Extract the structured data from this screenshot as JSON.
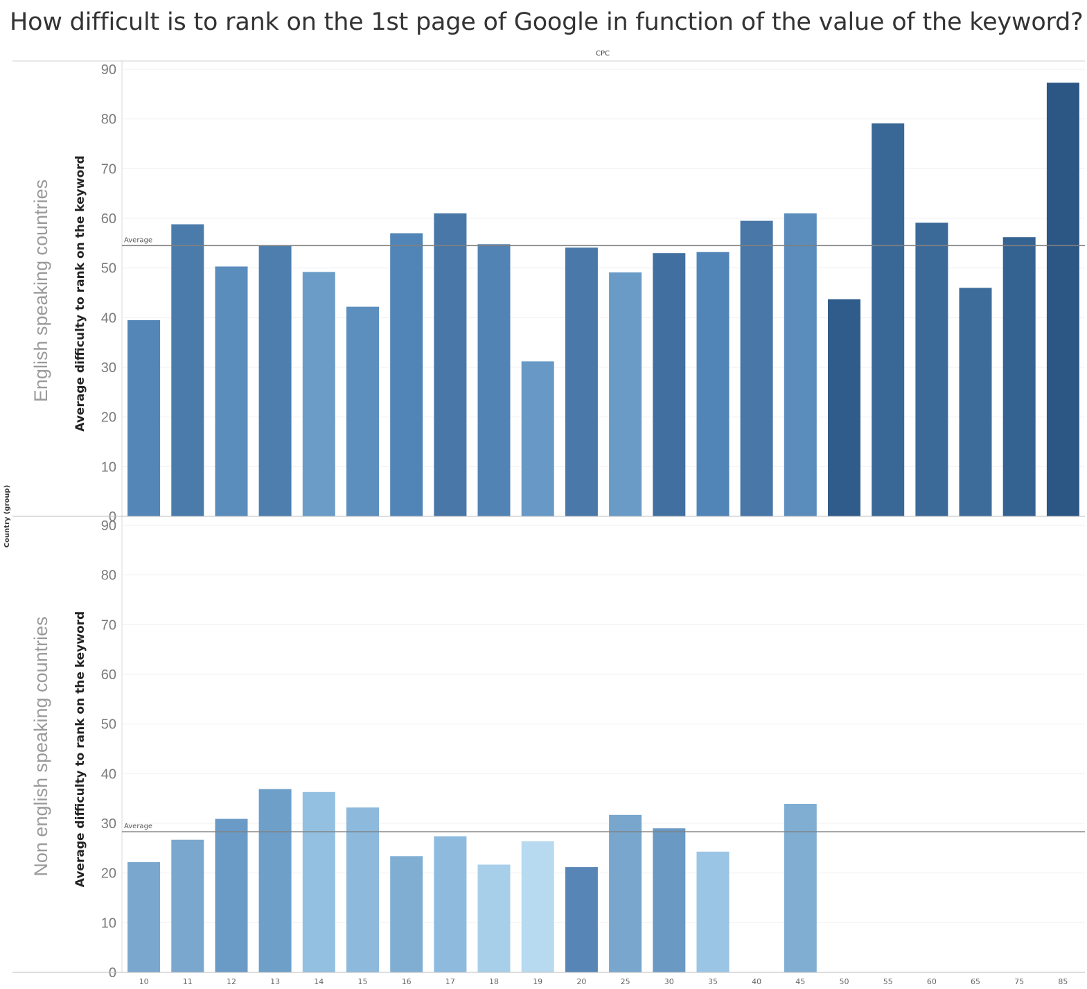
{
  "title": "How difficult is to rank on the 1st page of Google in function of the value of the keyword?",
  "chart_data": {
    "type": "bar",
    "column_header": "CPC",
    "row_field_label": "Country (group)",
    "ylabel": "Average difficulty to rank on the keyword",
    "ylim": [
      0,
      90
    ],
    "yticks": [
      0,
      10,
      20,
      30,
      40,
      50,
      60,
      70,
      80,
      90
    ],
    "reference_line_label": "Average",
    "categories": [
      "10",
      "11",
      "12",
      "13",
      "14",
      "15",
      "16",
      "17",
      "18",
      "19",
      "20",
      "25",
      "30",
      "35",
      "40",
      "45",
      "50",
      "55",
      "60",
      "65",
      "75",
      "85"
    ],
    "panels": [
      {
        "name": "English speaking countries",
        "average": 54.5,
        "values": [
          39.5,
          58.8,
          50.3,
          54.5,
          49.2,
          42.2,
          57.0,
          61.0,
          54.8,
          31.2,
          54.1,
          49.1,
          53.0,
          53.2,
          59.5,
          61.0,
          43.7,
          79.1,
          59.1,
          46.0,
          56.2,
          87.3
        ],
        "colors": [
          "#5486b8",
          "#4a7bab",
          "#5a8cbc",
          "#4d7eae",
          "#6b9cc7",
          "#5c8ebe",
          "#5285b7",
          "#4877a8",
          "#5283b5",
          "#6898c5",
          "#4a79a9",
          "#6a9bc6",
          "#416fa0",
          "#5285b7",
          "#4877a8",
          "#5a8cbc",
          "#2f5c8a",
          "#3a6896",
          "#3c6a98",
          "#3e6c9a",
          "#356391",
          "#2c5683"
        ]
      },
      {
        "name": "Non english speaking countries",
        "average": 28.3,
        "values": [
          22.2,
          26.7,
          30.9,
          36.9,
          36.3,
          33.2,
          23.4,
          27.4,
          21.7,
          26.4,
          21.2,
          31.7,
          29.0,
          24.3,
          null,
          33.9,
          null,
          null,
          null,
          null,
          null,
          null
        ],
        "colors": [
          "#7aa7ce",
          "#7aa7ce",
          "#6a9bc6",
          "#6e9fc8",
          "#93c0e0",
          "#8cb9dc",
          "#80aed3",
          "#8ebade",
          "#a8cfe9",
          "#b8daf0",
          "#5786b6",
          "#78a6cd",
          "#6a99c4",
          "#9bc5e4",
          null,
          "#80aed3",
          null,
          null,
          null,
          null,
          null,
          null
        ]
      }
    ]
  }
}
